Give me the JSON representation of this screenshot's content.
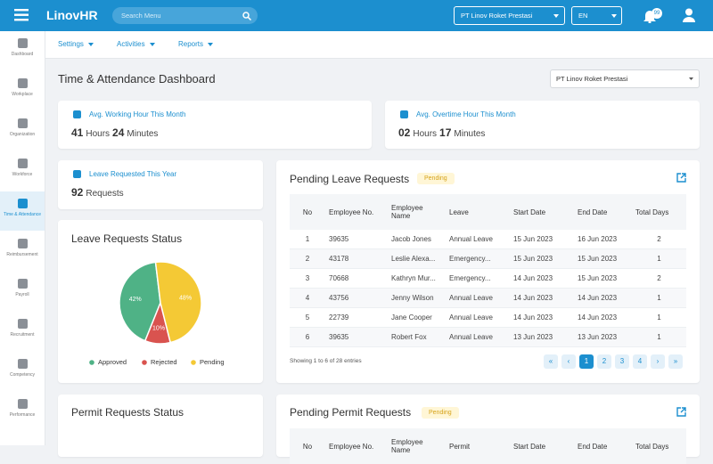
{
  "topbar": {
    "logo": "LinovHR",
    "search_placeholder": "Search Menu",
    "company": "PT Linov Roket Prestasi",
    "language": "EN",
    "notifications": "99"
  },
  "sidebar": [
    "Dashboard",
    "Workplace",
    "Organization",
    "Workforce",
    "Time & Attendance",
    "Reimbursement",
    "Payroll",
    "Recruitment",
    "Competency",
    "Performance"
  ],
  "subnav": [
    "Settings",
    "Activities",
    "Reports"
  ],
  "page": {
    "title": "Time & Attendance Dashboard",
    "company_filter": "PT Linov Roket Prestasi"
  },
  "stats": [
    {
      "label": "Avg. Working Hour This Month",
      "parts": [
        "41",
        "Hours",
        "24",
        "Minutes"
      ]
    },
    {
      "label": "Avg. Overtime Hour This Month",
      "parts": [
        "02",
        "Hours",
        "17",
        "Minutes"
      ]
    },
    {
      "label": "Leave Requested This Year",
      "parts": [
        "92",
        "Requests"
      ]
    }
  ],
  "leave_status": {
    "title": "Leave Requests Status",
    "labels": [
      "Approved",
      "Rejected",
      "Pending"
    ],
    "values": [
      42,
      10,
      48
    ],
    "value_labels": [
      "42%",
      "10%",
      "48%"
    ],
    "colors": [
      "#4fb286",
      "#d9534f",
      "#f4c935"
    ]
  },
  "pending_leave": {
    "title": "Pending Leave Requests",
    "badge": "Pending",
    "columns": [
      "No",
      "Employee No.",
      "Employee Name",
      "Leave",
      "Start Date",
      "End Date",
      "Total Days"
    ],
    "rows": [
      [
        1,
        "39635",
        "Jacob Jones",
        "Annual Leave",
        "15 Jun 2023",
        "16 Jun 2023",
        2
      ],
      [
        2,
        "43178",
        "Leslie Alexa...",
        "Emergency...",
        "15 Jun 2023",
        "15 Jun 2023",
        1
      ],
      [
        3,
        "70668",
        "Kathryn Mur...",
        "Emergency...",
        "14 Jun 2023",
        "15 Jun 2023",
        2
      ],
      [
        4,
        "43756",
        "Jenny Wilson",
        "Annual Leave",
        "14 Jun 2023",
        "14 Jun 2023",
        1
      ],
      [
        5,
        "22739",
        "Jane Cooper",
        "Annual Leave",
        "14 Jun 2023",
        "14 Jun 2023",
        1
      ],
      [
        6,
        "39635",
        "Robert Fox",
        "Annual Leave",
        "13 Jun 2023",
        "13 Jun 2023",
        1
      ]
    ],
    "footer": "Showing 1 to 6 of 28 entries",
    "pagination": [
      "«",
      "‹",
      "1",
      "2",
      "3",
      "4",
      "›",
      "»"
    ]
  },
  "permit_status": {
    "title": "Permit Requests Status"
  },
  "pending_permit": {
    "title": "Pending Permit Requests",
    "badge": "Pending",
    "columns": [
      "No",
      "Employee No.",
      "Employee Name",
      "Permit",
      "Start Date",
      "End Date",
      "Total Days"
    ]
  }
}
